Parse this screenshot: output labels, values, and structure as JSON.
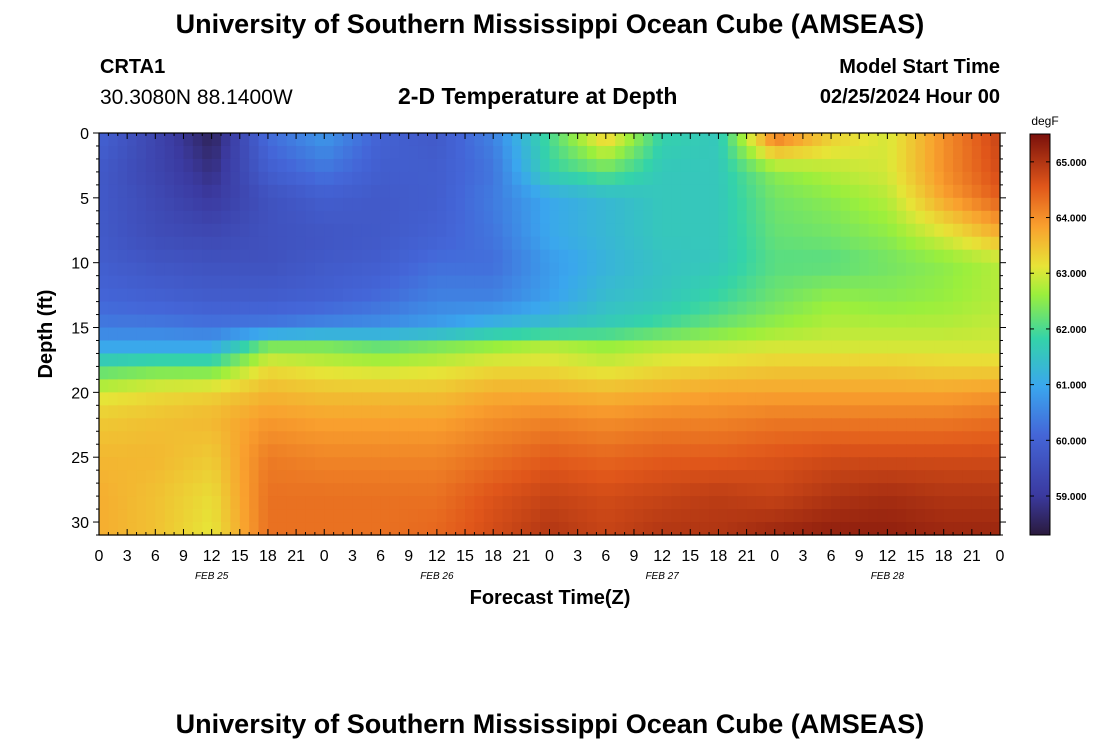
{
  "header": {
    "title": "University of Southern Mississippi Ocean Cube (AMSEAS)",
    "station": "CRTA1",
    "coords": "30.3080N  88.1400W",
    "subtitle": "2-D Temperature at Depth",
    "model_label": "Model Start Time",
    "model_time": "02/25/2024 Hour 00"
  },
  "footer": {
    "title": "University of Southern Mississippi Ocean Cube (AMSEAS)"
  },
  "chart_data": {
    "type": "heatmap",
    "title": "2-D Temperature at Depth",
    "xlabel": "Forecast Time(Z)",
    "ylabel": "Depth (ft)",
    "x_unit": "forecast hour",
    "xlim": [
      0,
      96
    ],
    "ylim": [
      0,
      31
    ],
    "x_tick_step_hours": 3,
    "x_tick_labels": [
      "0",
      "3",
      "6",
      "9",
      "12",
      "15",
      "18",
      "21",
      "0",
      "3",
      "6",
      "9",
      "12",
      "15",
      "18",
      "21",
      "0",
      "3",
      "6",
      "9",
      "12",
      "15",
      "18",
      "21",
      "0",
      "3",
      "6",
      "9",
      "12",
      "15",
      "18",
      "21",
      "0"
    ],
    "y_ticks": [
      0,
      5,
      10,
      15,
      20,
      25,
      30
    ],
    "day_labels": [
      {
        "label": "FEB 25",
        "hour": 12
      },
      {
        "label": "FEB 26",
        "hour": 36
      },
      {
        "label": "FEB 27",
        "hour": 60
      },
      {
        "label": "FEB 28",
        "hour": 84
      }
    ],
    "colorbar": {
      "unit": "degF",
      "range": [
        58.3,
        65.5
      ],
      "ticks": [
        "59.000",
        "60.000",
        "61.000",
        "62.000",
        "63.000",
        "64.000",
        "65.000"
      ],
      "tick_values": [
        59,
        60,
        61,
        62,
        63,
        64,
        65
      ]
    },
    "depths_ft": [
      0,
      3,
      5,
      8,
      10,
      13,
      15,
      16.5,
      18,
      20,
      22,
      25,
      28,
      31
    ],
    "hours": [
      0,
      6,
      12,
      18,
      24,
      30,
      36,
      42,
      48,
      54,
      60,
      66,
      72,
      78,
      84,
      90,
      96
    ],
    "values_degF": [
      [
        60.0,
        59.3,
        58.5,
        60.2,
        60.8,
        60.0,
        59.8,
        60.5,
        62.0,
        63.5,
        61.8,
        61.6,
        64.4,
        63.4,
        63.0,
        64.0,
        64.8
      ],
      [
        59.8,
        59.3,
        58.8,
        59.9,
        60.3,
        59.9,
        59.9,
        60.3,
        61.8,
        62.2,
        61.6,
        61.6,
        62.5,
        62.8,
        63.0,
        64.0,
        64.7
      ],
      [
        59.8,
        59.4,
        59.0,
        59.6,
        59.9,
        59.8,
        59.9,
        60.4,
        61.0,
        61.3,
        61.6,
        61.6,
        62.3,
        62.5,
        62.8,
        63.8,
        64.5
      ],
      [
        59.8,
        59.5,
        59.4,
        59.6,
        59.7,
        59.8,
        60.0,
        60.3,
        61.0,
        61.3,
        61.6,
        61.6,
        62.2,
        62.3,
        62.5,
        63.0,
        63.6
      ],
      [
        59.9,
        59.7,
        59.6,
        59.6,
        59.8,
        59.9,
        60.2,
        60.2,
        60.8,
        61.2,
        61.5,
        61.6,
        62.1,
        62.1,
        62.3,
        62.5,
        62.8
      ],
      [
        60.1,
        60.0,
        59.9,
        59.9,
        60.0,
        60.2,
        60.5,
        60.5,
        60.9,
        61.4,
        61.6,
        61.9,
        62.3,
        62.6,
        62.5,
        62.6,
        62.8
      ],
      [
        60.4,
        60.4,
        60.3,
        60.4,
        60.6,
        60.7,
        60.9,
        61.3,
        61.5,
        61.7,
        62.0,
        62.3,
        62.6,
        62.8,
        62.8,
        62.8,
        62.9
      ],
      [
        61.0,
        61.0,
        61.0,
        62.4,
        62.4,
        62.2,
        62.4,
        62.6,
        62.8,
        62.6,
        62.8,
        62.9,
        63.0,
        63.0,
        63.0,
        63.0,
        63.0
      ],
      [
        62.0,
        62.2,
        62.2,
        63.2,
        63.0,
        62.9,
        63.0,
        63.2,
        63.2,
        63.0,
        63.2,
        63.3,
        63.4,
        63.4,
        63.4,
        63.3,
        63.3
      ],
      [
        63.0,
        63.2,
        63.3,
        63.6,
        63.5,
        63.5,
        63.5,
        63.7,
        63.7,
        63.6,
        63.7,
        63.8,
        63.8,
        63.8,
        63.8,
        63.8,
        63.9
      ],
      [
        63.4,
        63.5,
        63.6,
        63.9,
        63.8,
        63.8,
        63.8,
        64.0,
        64.1,
        64.0,
        64.1,
        64.1,
        64.2,
        64.2,
        64.2,
        64.2,
        64.3
      ],
      [
        63.6,
        63.6,
        63.4,
        64.2,
        64.1,
        64.1,
        64.1,
        64.3,
        64.5,
        64.4,
        64.5,
        64.5,
        64.6,
        64.7,
        64.7,
        64.7,
        64.7
      ],
      [
        63.7,
        63.5,
        63.2,
        64.3,
        64.3,
        64.3,
        64.3,
        64.6,
        64.8,
        64.7,
        64.8,
        64.9,
        64.8,
        65.0,
        65.1,
        65.0,
        65.0
      ],
      [
        63.7,
        63.5,
        63.1,
        64.3,
        64.3,
        64.3,
        64.4,
        64.7,
        65.0,
        64.8,
        65.0,
        65.0,
        65.2,
        65.3,
        65.3,
        65.2,
        65.2
      ]
    ]
  }
}
